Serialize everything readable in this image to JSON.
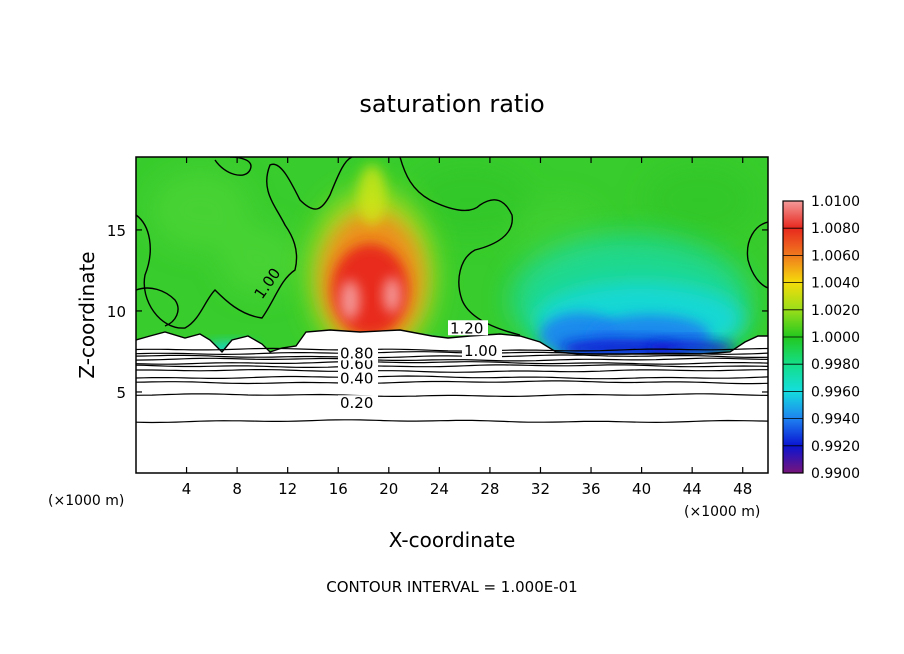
{
  "chart_data": {
    "type": "heatmap",
    "title": "saturation ratio",
    "xlabel": "X-coordinate",
    "ylabel": "Z-coordinate",
    "x_unit_left": "(×1000 m)",
    "x_unit_right": "(×1000 m)",
    "xlim": [
      0,
      50
    ],
    "ylim": [
      0,
      19.5
    ],
    "x_ticks": [
      4,
      8,
      12,
      16,
      20,
      24,
      28,
      32,
      36,
      40,
      44,
      48
    ],
    "x_tick_labels": [
      "4",
      "8",
      "12",
      "16",
      "20",
      "24",
      "28",
      "32",
      "36",
      "40",
      "44",
      "48"
    ],
    "y_ticks": [
      5,
      10,
      15
    ],
    "y_tick_labels": [
      "5",
      "10",
      "15"
    ],
    "colorbar": {
      "min": 0.99,
      "max": 1.01,
      "labels": [
        "1.0100",
        "1.0080",
        "1.0060",
        "1.0040",
        "1.0020",
        "1.0000",
        "0.9980",
        "0.9960",
        "0.9940",
        "0.9920",
        "0.9900"
      ],
      "colors": [
        "#f29a9a",
        "#e8281e",
        "#f07a1e",
        "#f5dc0a",
        "#9ade1a",
        "#24c81e",
        "#14de88",
        "#14dede",
        "#1e82f0",
        "#0a14d2",
        "#78147a"
      ]
    },
    "contour_interval": 0.1,
    "contour_lines": [
      {
        "value": 0.2,
        "label": "0.20",
        "z": 4.8
      },
      {
        "value": 0.4,
        "label": "0.40",
        "z": 5.9
      },
      {
        "value": 0.6,
        "label": "0.60",
        "z": 6.8
      },
      {
        "value": 0.8,
        "label": "0.80",
        "z": 7.2
      },
      {
        "value": 1.0,
        "label": "1.00",
        "z": 7.6
      },
      {
        "value": 1.2,
        "label": "1.20",
        "z": 8.5
      }
    ],
    "extra_contour_labels": [
      "1.00"
    ]
  },
  "footer": {
    "text": "CONTOUR INTERVAL = 1.000E-01"
  },
  "colors": {
    "background": "#ffffff",
    "frame": "#000000",
    "contour": "#000000",
    "field_base": "#38cc2c"
  }
}
